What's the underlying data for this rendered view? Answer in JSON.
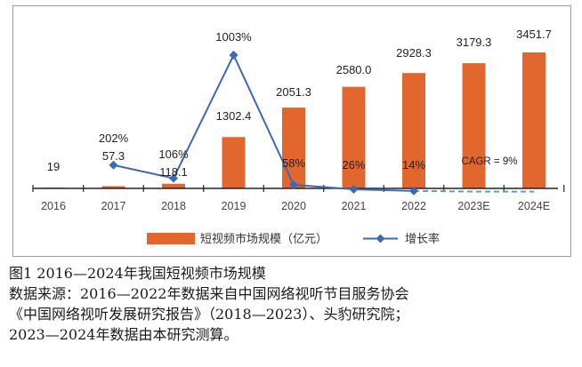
{
  "chart_data": {
    "type": "bar+line",
    "categories": [
      "2016",
      "2017",
      "2018",
      "2019",
      "2020",
      "2021",
      "2022",
      "2023E",
      "2024E"
    ],
    "series": [
      {
        "name": "短视频市场规模（亿元）",
        "kind": "bar",
        "color": "#e2672e",
        "values": [
          19,
          57.3,
          118.1,
          1302.4,
          2051.3,
          2580.0,
          2928.3,
          3179.3,
          3451.7
        ],
        "labels": [
          "19",
          "57.3",
          "118.1",
          "1302.4",
          "2051.3",
          "2580.0",
          "2928.3",
          "3179.3",
          "3451.7"
        ]
      },
      {
        "name": "增长率",
        "kind": "line",
        "color": "#3d68b4",
        "values": [
          null,
          202,
          106,
          1003,
          58,
          26,
          14,
          null,
          null
        ],
        "labels": [
          "",
          "202%",
          "106%",
          "1003%",
          "58%",
          "26%",
          "14%",
          "",
          ""
        ],
        "projected": {
          "values": [
            14,
            9,
            9
          ],
          "from_index": 6,
          "style": "dashed"
        }
      }
    ],
    "annotation": "CAGR = 9%",
    "bar_ylim": [
      0,
      3700
    ],
    "line_ylim": [
      0,
      1100
    ],
    "legend_position": "bottom"
  },
  "caption": {
    "line1": "图1  2016—2024年我国短视频市场规模",
    "line2": "数据来源：2016—2022年数据来自中国网络视听节目服务协会",
    "line3": "《中国网络视听发展研究报告》（2018—2023）、头豹研究院；",
    "line4": "2023—2024年数据由本研究测算。"
  }
}
